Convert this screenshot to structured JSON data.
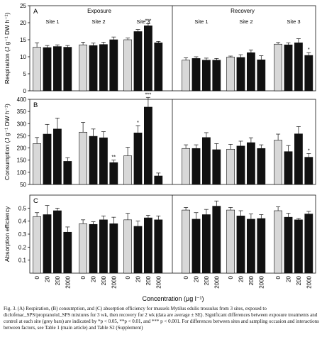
{
  "caption": "Fig. 3. (A) Respiration, (B) consumption, and (C) absorption efficiency for mussels Mytilus edulis trossulus from 3 sites, exposed to diclofenac_SPS/propranolol_SPS mixtures for 3 wk, then recovery for 2 wk (data are average ± SE). Significant differences between exposure treatments and control at each site (grey bars) are indicated by *p < 0.05, **p < 0.01, and *** p < 0.001. For differences between sites and sampling occasion and interactions between factors, see Table 1 (main article) and Table S2 (Supplement)",
  "chart_data": {
    "type": "bar",
    "xlabel": "Concentration (µg l⁻¹)",
    "categories": [
      "0",
      "20",
      "200",
      "2000"
    ],
    "phases": [
      "Exposure",
      "Recovery"
    ],
    "sites": [
      "Site 1",
      "Site 2",
      "Site 3"
    ],
    "control_color": "#d8d8d8",
    "treatment_color": "#111111",
    "panels": [
      {
        "letter": "A",
        "ylabel": "Respiration (J g⁻¹ DW h⁻¹)",
        "ylim": [
          0,
          25
        ],
        "yticks": [
          0,
          5,
          10,
          15,
          20,
          25
        ],
        "groups": [
          {
            "phase": "Exposure",
            "site": "Site 1",
            "values": [
              12.8,
              12.7,
              13.0,
              12.8
            ],
            "errors": [
              1.3,
              0.6,
              0.5,
              0.5
            ],
            "stars": [
              "",
              "",
              "",
              ""
            ]
          },
          {
            "phase": "Exposure",
            "site": "Site 2",
            "values": [
              13.5,
              13.3,
              13.6,
              15.0
            ],
            "errors": [
              0.8,
              0.7,
              0.7,
              0.8
            ],
            "stars": [
              "",
              "",
              "",
              ""
            ]
          },
          {
            "phase": "Exposure",
            "site": "Site 3",
            "values": [
              15.0,
              17.4,
              19.1,
              14.1
            ],
            "errors": [
              0.5,
              0.6,
              0.6,
              0.4
            ],
            "stars": [
              "",
              "",
              "***",
              ""
            ]
          },
          {
            "phase": "Recovery",
            "site": "Site 1",
            "values": [
              9.0,
              9.5,
              9.0,
              9.0
            ],
            "errors": [
              0.7,
              0.5,
              0.6,
              0.5
            ],
            "stars": [
              "",
              "",
              "",
              ""
            ]
          },
          {
            "phase": "Recovery",
            "site": "Site 2",
            "values": [
              9.9,
              9.8,
              11.2,
              9.1
            ],
            "errors": [
              0.3,
              0.8,
              0.8,
              1.2
            ],
            "stars": [
              "",
              "",
              "",
              ""
            ]
          },
          {
            "phase": "Recovery",
            "site": "Site 3",
            "values": [
              13.7,
              13.5,
              14.1,
              10.4
            ],
            "errors": [
              0.5,
              0.6,
              1.2,
              0.8
            ],
            "stars": [
              "",
              "",
              "",
              "*"
            ]
          }
        ]
      },
      {
        "letter": "B",
        "ylabel": "Consumption (J g⁻¹ DW h⁻¹)",
        "ylim": [
          50,
          400
        ],
        "yticks": [
          50,
          100,
          150,
          200,
          250,
          300,
          350,
          400
        ],
        "groups": [
          {
            "phase": "Exposure",
            "site": "Site 1",
            "values": [
              218,
              257,
              278,
              145
            ],
            "errors": [
              25,
              40,
              45,
              15
            ],
            "stars": [
              "",
              "",
              "",
              ""
            ]
          },
          {
            "phase": "Exposure",
            "site": "Site 2",
            "values": [
              265,
              248,
              242,
              140
            ],
            "errors": [
              40,
              30,
              25,
              10
            ],
            "stars": [
              "",
              "",
              "",
              "**"
            ]
          },
          {
            "phase": "Exposure",
            "site": "Site 3",
            "values": [
              168,
              262,
              368,
              85
            ],
            "errors": [
              35,
              30,
              40,
              12
            ],
            "stars": [
              "",
              "*",
              "***",
              ""
            ]
          },
          {
            "phase": "Recovery",
            "site": "Site 1",
            "values": [
              198,
              198,
              243,
              193
            ],
            "errors": [
              15,
              15,
              20,
              25
            ],
            "stars": [
              "",
              "",
              "",
              ""
            ]
          },
          {
            "phase": "Recovery",
            "site": "Site 2",
            "values": [
              195,
              208,
              222,
              198
            ],
            "errors": [
              20,
              20,
              20,
              15
            ],
            "stars": [
              "",
              "",
              "",
              ""
            ]
          },
          {
            "phase": "Recovery",
            "site": "Site 3",
            "values": [
              232,
              185,
              258,
              162
            ],
            "errors": [
              25,
              25,
              30,
              15
            ],
            "stars": [
              "",
              "",
              "",
              "*"
            ]
          }
        ]
      },
      {
        "letter": "C",
        "ylabel": "Absorption efficiency",
        "ylim": [
          0,
          0.6
        ],
        "yticks": [
          0.1,
          0.2,
          0.3,
          0.4,
          0.5
        ],
        "ytick_labels": [
          "0.1",
          "0.2",
          "0.3",
          "0.4",
          "0.5"
        ],
        "groups": [
          {
            "phase": "Exposure",
            "site": "Site 1",
            "values": [
              0.435,
              0.45,
              0.48,
              0.315
            ],
            "errors": [
              0.03,
              0.07,
              0.02,
              0.04
            ],
            "stars": [
              "",
              "",
              "",
              ""
            ]
          },
          {
            "phase": "Exposure",
            "site": "Site 2",
            "values": [
              0.38,
              0.375,
              0.41,
              0.38
            ],
            "errors": [
              0.03,
              0.02,
              0.03,
              0.05
            ],
            "stars": [
              "",
              "",
              "",
              ""
            ]
          },
          {
            "phase": "Exposure",
            "site": "Site 3",
            "values": [
              0.41,
              0.36,
              0.425,
              0.41
            ],
            "errors": [
              0.05,
              0.04,
              0.02,
              0.03
            ],
            "stars": [
              "",
              "",
              "",
              ""
            ]
          },
          {
            "phase": "Recovery",
            "site": "Site 1",
            "values": [
              0.485,
              0.415,
              0.45,
              0.515
            ],
            "errors": [
              0.02,
              0.05,
              0.04,
              0.04
            ],
            "stars": [
              "",
              "",
              "",
              ""
            ]
          },
          {
            "phase": "Recovery",
            "site": "Site 2",
            "values": [
              0.485,
              0.44,
              0.415,
              0.42
            ],
            "errors": [
              0.02,
              0.04,
              0.04,
              0.03
            ],
            "stars": [
              "",
              "",
              "",
              ""
            ]
          },
          {
            "phase": "Recovery",
            "site": "Site 3",
            "values": [
              0.48,
              0.43,
              0.41,
              0.455
            ],
            "errors": [
              0.03,
              0.03,
              0.01,
              0.02
            ],
            "stars": [
              "",
              "",
              "",
              ""
            ]
          }
        ]
      }
    ]
  }
}
